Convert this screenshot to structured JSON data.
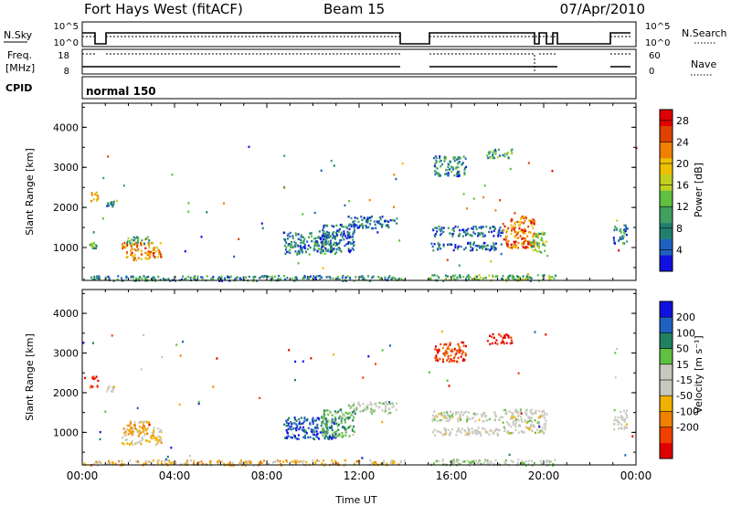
{
  "header": {
    "title": "Fort Hays West (fitACF)",
    "beam": "Beam 15",
    "date": "07/Apr/2010"
  },
  "panels": {
    "nsky": {
      "label": "N.Sky",
      "ticks_left": [
        "10^5",
        "10^0"
      ],
      "ticks_right": [
        "10^5",
        "10^0"
      ],
      "right_label": "N.Search"
    },
    "freq": {
      "label_line1": "Freq.",
      "label_line2": "[MHz]",
      "ticks_left": [
        "18",
        "8"
      ],
      "ticks_right": [
        "60",
        "0"
      ],
      "right_label": "Nave"
    },
    "cpid": {
      "label": "CPID",
      "value": "normal 150"
    }
  },
  "chart_data": [
    {
      "type": "heatmap",
      "name": "power",
      "ylabel": "Slant Range [km]",
      "yticks": [
        "1000",
        "2000",
        "3000",
        "4000"
      ],
      "ylim": [
        180,
        4600
      ],
      "colorbar": {
        "label": "Power [dB]",
        "ticks": [
          "4",
          "8",
          "12",
          "16",
          "20",
          "24",
          "28"
        ],
        "range": [
          0,
          30
        ],
        "colors": [
          "#1010e0",
          "#2060c0",
          "#208070",
          "#40a060",
          "#60c040",
          "#c0d020",
          "#f0c000",
          "#f08000",
          "#e04000",
          "#e00000"
        ]
      },
      "clusters": [
        {
          "t": [
            0.3,
            0.65
          ],
          "r": [
            2150,
            2450
          ],
          "v": 20
        },
        {
          "t": [
            0.3,
            0.6
          ],
          "r": [
            950,
            1150
          ],
          "v": 12
        },
        {
          "t": [
            1.0,
            1.35
          ],
          "r": [
            2050,
            2200
          ],
          "v": 8
        },
        {
          "t": [
            1.7,
            3.4
          ],
          "r": [
            700,
            1150
          ],
          "v": 22
        },
        {
          "t": [
            1.9,
            2.9
          ],
          "r": [
            1100,
            1300
          ],
          "v": 10
        },
        {
          "t": [
            8.7,
            11.0
          ],
          "r": [
            850,
            1400
          ],
          "v": 8
        },
        {
          "t": [
            10.3,
            11.8
          ],
          "r": [
            900,
            1600
          ],
          "v": 6
        },
        {
          "t": [
            11.5,
            13.6
          ],
          "r": [
            1500,
            1800
          ],
          "v": 6
        },
        {
          "t": [
            15.1,
            18.2
          ],
          "r": [
            1300,
            1550
          ],
          "v": 6
        },
        {
          "t": [
            15.1,
            18.2
          ],
          "r": [
            950,
            1150
          ],
          "v": 6
        },
        {
          "t": [
            15.2,
            16.6
          ],
          "r": [
            2800,
            3300
          ],
          "v": 8
        },
        {
          "t": [
            17.5,
            18.6
          ],
          "r": [
            3250,
            3500
          ],
          "v": 10
        },
        {
          "t": [
            18.2,
            19.6
          ],
          "r": [
            1000,
            1800
          ],
          "v": 24
        },
        {
          "t": [
            19.4,
            20.1
          ],
          "r": [
            900,
            1400
          ],
          "v": 14
        },
        {
          "t": [
            23.0,
            23.6
          ],
          "r": [
            1100,
            1600
          ],
          "v": 8
        },
        {
          "t": [
            0.0,
            14.0
          ],
          "r": [
            190,
            320
          ],
          "v": 8
        },
        {
          "t": [
            15.0,
            20.5
          ],
          "r": [
            190,
            340
          ],
          "v": 12
        }
      ]
    },
    {
      "type": "heatmap",
      "name": "velocity",
      "ylabel": "Slant Range [km]",
      "yticks": [
        "1000",
        "2000",
        "3000",
        "4000"
      ],
      "ylim": [
        180,
        4600
      ],
      "colorbar": {
        "label": "Velocity [m s⁻¹]",
        "ticks": [
          "200",
          "100",
          "50",
          "15",
          "-15",
          "-50",
          "-100",
          "-200"
        ],
        "range": [
          -250,
          250
        ],
        "colors": [
          "#e00000",
          "#f04000",
          "#f08000",
          "#f0b000",
          "#c8c8c0",
          "#c8c8c0",
          "#60c040",
          "#208060",
          "#2060c0",
          "#1010e0"
        ]
      },
      "clusters": [
        {
          "t": [
            0.3,
            0.65
          ],
          "r": [
            2150,
            2450
          ],
          "v": -200
        },
        {
          "t": [
            1.0,
            1.35
          ],
          "r": [
            2050,
            2200
          ],
          "v": 0
        },
        {
          "t": [
            1.7,
            3.4
          ],
          "r": [
            700,
            1150
          ],
          "v": -60
        },
        {
          "t": [
            1.9,
            2.9
          ],
          "r": [
            1100,
            1300
          ],
          "v": -90
        },
        {
          "t": [
            8.7,
            11.0
          ],
          "r": [
            850,
            1400
          ],
          "v": 180
        },
        {
          "t": [
            10.3,
            11.8
          ],
          "r": [
            900,
            1600
          ],
          "v": 90
        },
        {
          "t": [
            11.5,
            13.6
          ],
          "r": [
            1500,
            1800
          ],
          "v": 20
        },
        {
          "t": [
            15.1,
            18.2
          ],
          "r": [
            1300,
            1550
          ],
          "v": 0
        },
        {
          "t": [
            15.1,
            18.2
          ],
          "r": [
            950,
            1150
          ],
          "v": 0
        },
        {
          "t": [
            15.2,
            16.6
          ],
          "r": [
            2800,
            3300
          ],
          "v": -180
        },
        {
          "t": [
            17.5,
            18.6
          ],
          "r": [
            3250,
            3500
          ],
          "v": -220
        },
        {
          "t": [
            18.2,
            20.1
          ],
          "r": [
            1000,
            1600
          ],
          "v": 0
        },
        {
          "t": [
            23.0,
            23.6
          ],
          "r": [
            1100,
            1600
          ],
          "v": 0
        },
        {
          "t": [
            0.0,
            14.0
          ],
          "r": [
            190,
            320
          ],
          "v": -60
        },
        {
          "t": [
            15.0,
            20.5
          ],
          "r": [
            190,
            340
          ],
          "v": 30
        }
      ]
    }
  ],
  "xaxis": {
    "label": "Time UT",
    "ticks": [
      "00:00",
      "04:00",
      "08:00",
      "12:00",
      "16:00",
      "20:00",
      "00:00"
    ],
    "xlim": [
      0,
      24
    ]
  }
}
